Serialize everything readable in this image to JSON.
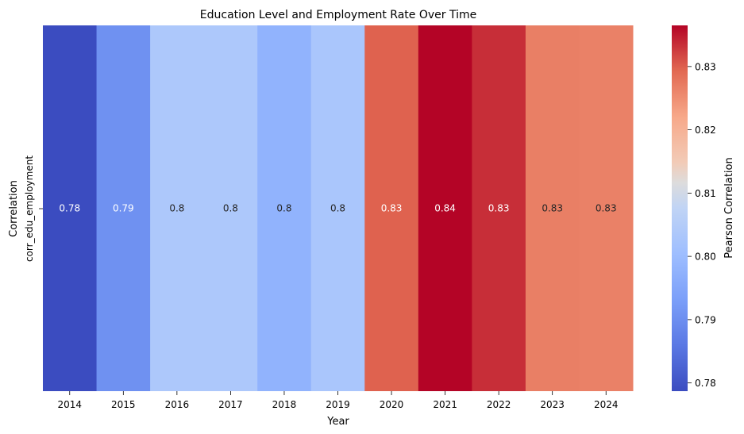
{
  "chart_data": {
    "type": "heatmap",
    "title": "Education Level and Employment Rate Over Time",
    "xlabel": "Year",
    "ylabel": "Correlation",
    "row_labels": [
      "corr_edu_employment"
    ],
    "categories": [
      "2014",
      "2015",
      "2016",
      "2017",
      "2018",
      "2019",
      "2020",
      "2021",
      "2022",
      "2023",
      "2024"
    ],
    "values": [
      0.7787,
      0.7905,
      0.8035,
      0.8035,
      0.7977,
      0.8029,
      0.8298,
      0.8365,
      0.8335,
      0.8268,
      0.8265
    ],
    "annotations": [
      "0.78",
      "0.79",
      "0.8",
      "0.8",
      "0.8",
      "0.8",
      "0.83",
      "0.84",
      "0.83",
      "0.83",
      "0.83"
    ],
    "colorbar": {
      "label": "Pearson Correlation",
      "min": 0.7787,
      "max": 0.8365,
      "ticks": [
        "0.78",
        "0.79",
        "0.80",
        "0.81",
        "0.82",
        "0.83"
      ],
      "colormap": "coolwarm",
      "low_color": "#3b4cc0",
      "mid_color": "#dddddd",
      "high_color": "#b40426"
    }
  }
}
